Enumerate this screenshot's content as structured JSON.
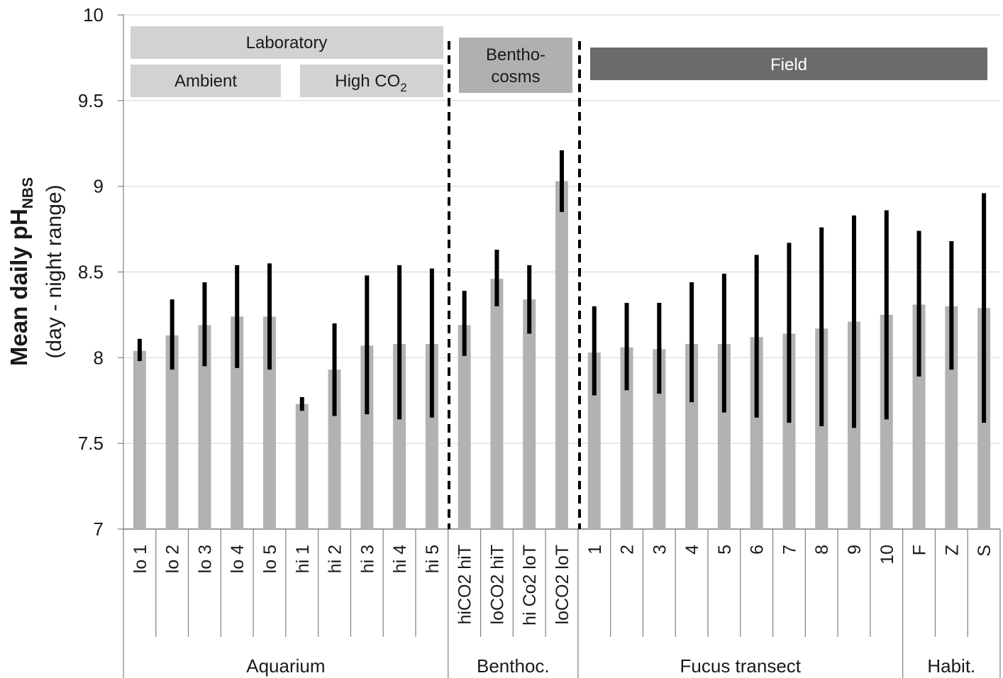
{
  "chart_data": {
    "type": "bar",
    "ylabel": "Mean daily pH",
    "ylabel_subscript": "NBS",
    "ylabel_line2": "(day - night range)",
    "ylim": [
      7,
      10
    ],
    "yticks": [
      "7",
      "7.5",
      "8",
      "8.5",
      "9",
      "9.5",
      "10"
    ],
    "grid": true,
    "bar_color": "#b2b2b2",
    "range_color": "#000000",
    "categories": [
      "lo 1",
      "lo 2",
      "lo 3",
      "lo 4",
      "lo 5",
      "hi 1",
      "hi 2",
      "hi 3",
      "hi 4",
      "hi 5",
      "hiCO2 hiT",
      "loCO2 hiT",
      "hi Co2 loT",
      "loCO2 loT",
      "1",
      "2",
      "3",
      "4",
      "5",
      "6",
      "7",
      "8",
      "9",
      "10",
      "F",
      "Z",
      "S"
    ],
    "values": [
      8.04,
      8.13,
      8.19,
      8.24,
      8.24,
      7.73,
      7.93,
      8.07,
      8.08,
      8.08,
      8.19,
      8.46,
      8.34,
      9.03,
      8.03,
      8.06,
      8.05,
      8.08,
      8.08,
      8.12,
      8.14,
      8.17,
      8.21,
      8.25,
      8.31,
      8.3,
      8.29
    ],
    "range_low": [
      7.98,
      7.93,
      7.95,
      7.94,
      7.93,
      7.69,
      7.66,
      7.67,
      7.64,
      7.65,
      8.01,
      8.3,
      8.14,
      8.85,
      7.78,
      7.81,
      7.79,
      7.74,
      7.68,
      7.65,
      7.62,
      7.6,
      7.59,
      7.64,
      7.89,
      7.93,
      7.62
    ],
    "range_high": [
      8.11,
      8.34,
      8.44,
      8.54,
      8.55,
      7.77,
      8.2,
      8.48,
      8.54,
      8.52,
      8.39,
      8.63,
      8.54,
      9.21,
      8.3,
      8.32,
      8.32,
      8.44,
      8.49,
      8.6,
      8.67,
      8.76,
      8.83,
      8.86,
      8.74,
      8.68,
      8.96
    ],
    "groups": [
      {
        "label": "Aquarium",
        "count": 10
      },
      {
        "label": "Benthoc.",
        "count": 4
      },
      {
        "label": "Fucus transect",
        "count": 10
      },
      {
        "label": "Habit.",
        "count": 3
      }
    ],
    "annotations": {
      "laboratory": "Laboratory",
      "ambient": "Ambient",
      "high_co2": "High CO",
      "high_co2_subscript": "2",
      "benthocosms_line1": "Bentho-",
      "benthocosms_line2": "cosms",
      "field": "Field"
    },
    "colors": {
      "light_box": "#d2d2d2",
      "mid_box": "#b0b0b0",
      "dark_box": "#6b6b6b",
      "field_text": "#ffffff",
      "gridline": "#d9d9d9"
    }
  }
}
